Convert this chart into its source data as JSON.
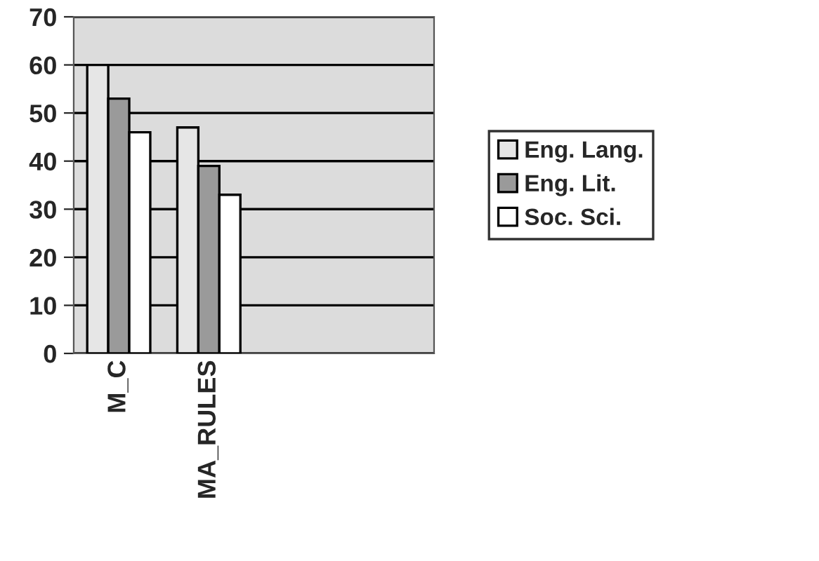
{
  "chart_data": {
    "type": "bar",
    "categories": [
      "M_C",
      "MA_RULES",
      null,
      null
    ],
    "series": [
      {
        "name": "Eng. Lang.",
        "color": "#e6e6e6",
        "values": [
          60,
          47,
          null,
          null
        ]
      },
      {
        "name": "Eng. Lit.",
        "color": "#9a9a9a",
        "values": [
          53,
          39,
          null,
          null
        ]
      },
      {
        "name": "Soc. Sci.",
        "color": "#ffffff",
        "values": [
          46,
          33,
          null,
          null
        ]
      }
    ],
    "ylim": [
      0,
      70
    ],
    "yticks": [
      0,
      10,
      20,
      30,
      40,
      50,
      60,
      70
    ],
    "grid": "y",
    "legend": "right"
  }
}
